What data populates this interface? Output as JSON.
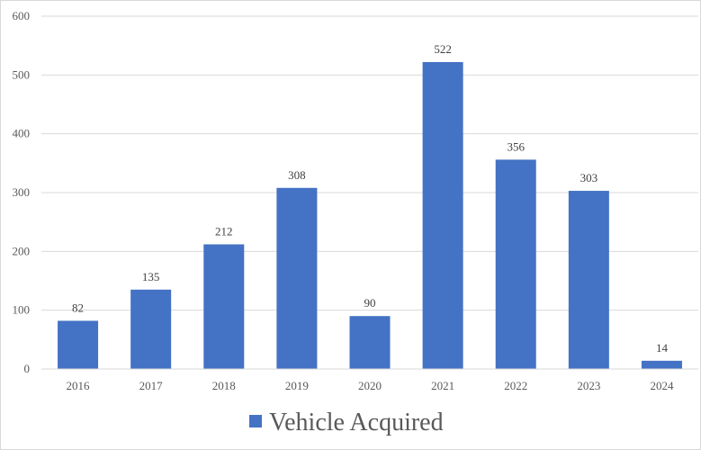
{
  "chart_data": {
    "type": "bar",
    "title": "",
    "xlabel": "",
    "ylabel": "",
    "categories": [
      "2016",
      "2017",
      "2018",
      "2019",
      "2020",
      "2021",
      "2022",
      "2023",
      "2024"
    ],
    "series": [
      {
        "name": "Vehicle Acquired",
        "values": [
          82,
          135,
          212,
          308,
          90,
          522,
          356,
          303,
          14
        ],
        "color": "#4472c4"
      }
    ],
    "ylim": [
      0,
      600
    ],
    "yticks": [
      "0",
      "100",
      "200",
      "300",
      "400",
      "500",
      "600"
    ],
    "data_labels": [
      "82",
      "135",
      "212",
      "308",
      "90",
      "522",
      "356",
      "303",
      "14"
    ],
    "grid": true,
    "legend_position": "bottom"
  },
  "colors": {
    "bar": "#4472c4",
    "grid": "#d9d9d9",
    "axis": "#d9d9d9",
    "text": "#595959"
  }
}
